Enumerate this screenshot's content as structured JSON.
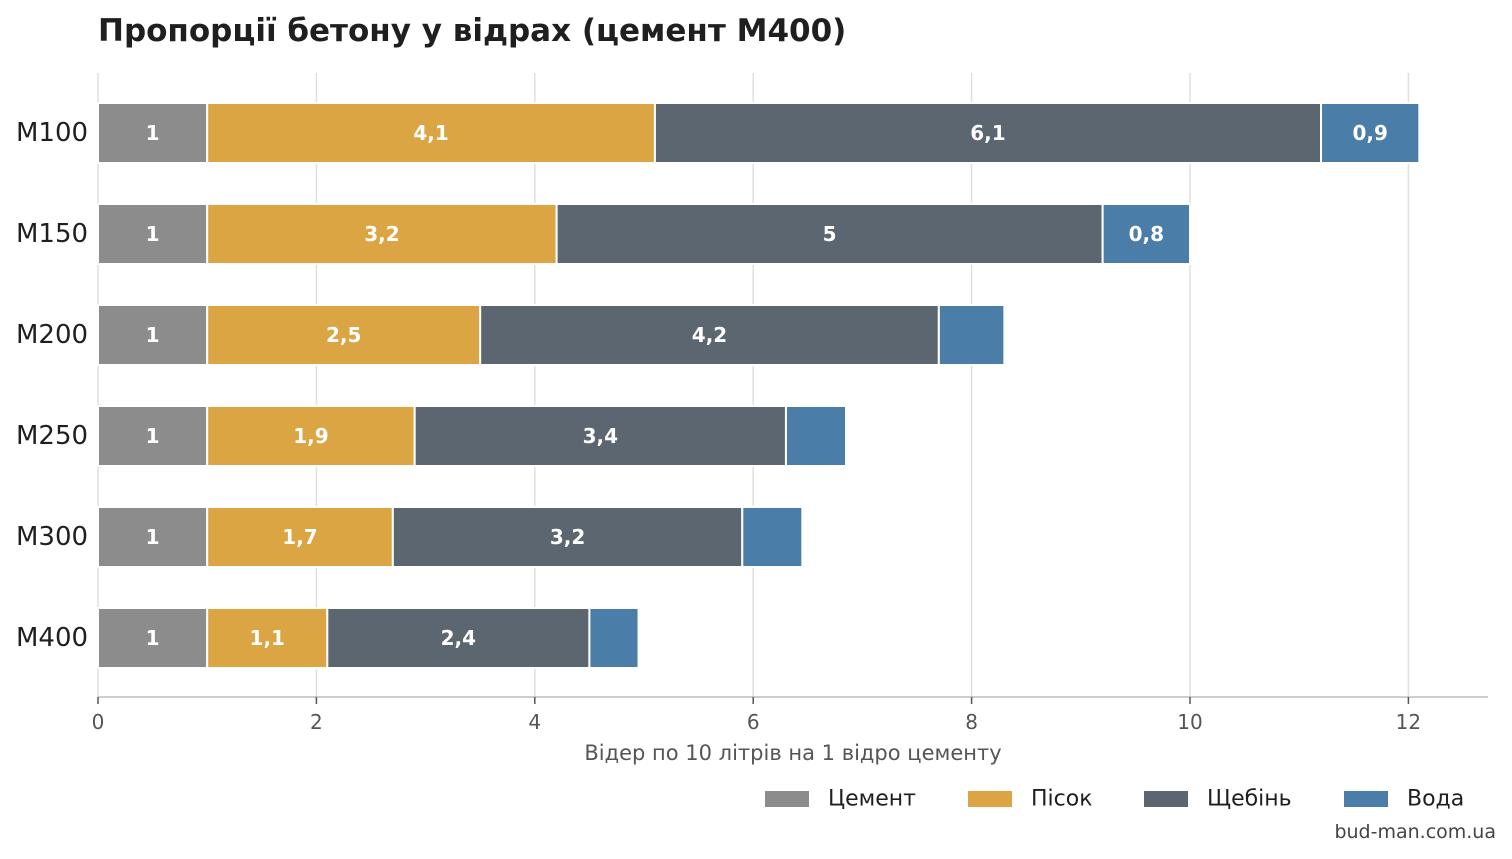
{
  "chart_data": {
    "type": "bar",
    "orientation": "horizontal",
    "stacked": true,
    "title": "Пропорції бетону у відрах (цемент М400)",
    "xlabel": "Відер по 10 літрів на 1 відро цементу",
    "ylabel": "",
    "xlim": [
      0,
      12.7
    ],
    "xticks": [
      0,
      2,
      4,
      6,
      8,
      10,
      12
    ],
    "grid": "vertical",
    "legend_position": "bottom-right",
    "categories": [
      "М100",
      "М150",
      "М200",
      "М250",
      "М300",
      "М400"
    ],
    "series": [
      {
        "name": "Цемент",
        "color": "#8c8c8c",
        "values": [
          1,
          1,
          1,
          1,
          1,
          1
        ],
        "labels": [
          "1",
          "1",
          "1",
          "1",
          "1",
          "1"
        ]
      },
      {
        "name": "Пісок",
        "color": "#dba543",
        "values": [
          4.1,
          3.2,
          2.5,
          1.9,
          1.7,
          1.1
        ],
        "labels": [
          "4,1",
          "3,2",
          "2,5",
          "1,9",
          "1,7",
          "1,1"
        ]
      },
      {
        "name": "Щебінь",
        "color": "#5c6670",
        "values": [
          6.1,
          5.0,
          4.2,
          3.4,
          3.2,
          2.4
        ],
        "labels": [
          "6,1",
          "5",
          "4,2",
          "3,4",
          "3,2",
          "2,4"
        ]
      },
      {
        "name": "Вода",
        "color": "#4a7ea8",
        "values": [
          0.9,
          0.8,
          0.6,
          0.55,
          0.55,
          0.45
        ],
        "labels": [
          "0,9",
          "0,8",
          "",
          "",
          "",
          ""
        ]
      }
    ]
  },
  "source": "bud-man.com.ua"
}
